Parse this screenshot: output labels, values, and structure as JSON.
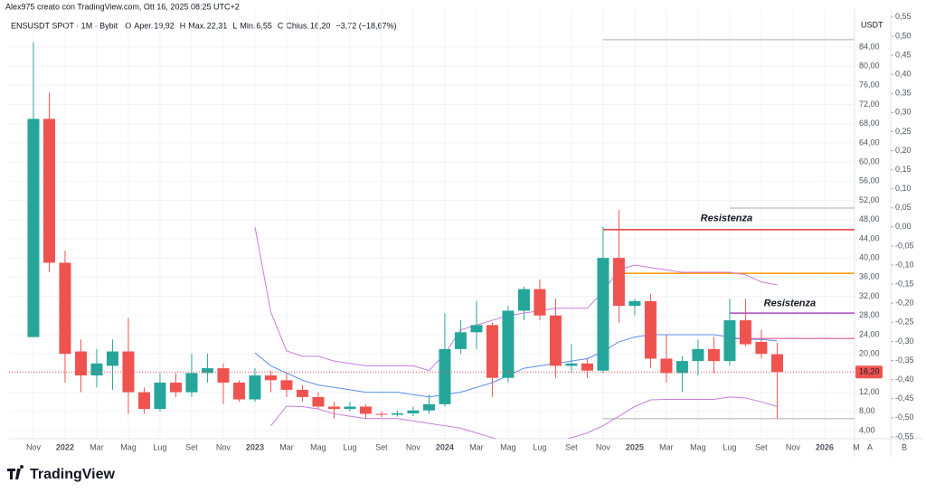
{
  "chart_data": {
    "type": "candlestick",
    "credit": "Alex975 creato con TradingView.com, Ott 16, 2025 08:25 UTC+2",
    "symbol": "ENSUSDT SPOT · 1M · Bybit",
    "ohlc_legend": [
      {
        "label": "O",
        "name": "Aper.",
        "value": "19,92"
      },
      {
        "label": "H",
        "name": "Max.",
        "value": "22,31"
      },
      {
        "label": "L",
        "name": "Min.",
        "value": "6,55"
      },
      {
        "label": "C",
        "name": "Chius.",
        "value": "16,20"
      }
    ],
    "change": "−3,72 (−18,67%)",
    "currency": "USDT",
    "brand": "TradingView",
    "corner_buttons": [
      "A",
      "B"
    ],
    "up_color": "#26a69a",
    "down_color": "#ef5350",
    "open": [
      23.5,
      69,
      39,
      20.5,
      15.5,
      17.5,
      20.5,
      12,
      8.5,
      14,
      12,
      16,
      17,
      14,
      10.5,
      15.5,
      14.5,
      12.5,
      11,
      9,
      8.5,
      9,
      7.5,
      7.3,
      7.6,
      8.2,
      9.5,
      21,
      24.5,
      26,
      15,
      29,
      33.5,
      28,
      17.5,
      18,
      16.5,
      40,
      30,
      31,
      19,
      16,
      18.5,
      21,
      18.5,
      27,
      22.5,
      19.92
    ],
    "high": [
      85,
      74.5,
      41.5,
      23,
      21,
      23,
      27.5,
      13,
      16,
      16,
      20,
      20,
      18,
      14.5,
      17,
      16.5,
      16,
      13.5,
      12,
      10,
      10,
      9.5,
      8,
      8.2,
      9,
      11.5,
      28.5,
      27,
      31,
      26.5,
      30,
      34,
      35.5,
      31.5,
      22,
      19,
      46.5,
      50,
      31.5,
      32.5,
      24,
      19.5,
      23,
      23.5,
      31.5,
      31.5,
      25,
      22.31
    ],
    "low": [
      23.5,
      37,
      14,
      12,
      13,
      12.5,
      7.5,
      7.5,
      8,
      11,
      11,
      14,
      9.5,
      10,
      10,
      12,
      11,
      10,
      8.5,
      6.5,
      8,
      6.5,
      6.8,
      6.9,
      7,
      7.5,
      9,
      20,
      21,
      11,
      14,
      27,
      27,
      15,
      16,
      15,
      16,
      26.5,
      28,
      17,
      14,
      12,
      15.5,
      16,
      17.5,
      21.5,
      19,
      6.55
    ],
    "close": [
      69,
      39,
      20,
      15.5,
      18,
      20.5,
      12,
      8.5,
      14,
      12,
      16,
      17,
      14,
      10.5,
      15.5,
      14.5,
      12.5,
      11,
      9,
      8.5,
      9,
      7.5,
      7.3,
      7.6,
      8.2,
      9.5,
      21,
      24.5,
      26,
      15,
      29,
      33.5,
      28,
      17.5,
      18,
      16.5,
      40,
      30,
      31,
      19,
      16,
      18.5,
      21,
      18.5,
      27,
      22,
      20,
      16.2
    ],
    "last_price_label": "16,20",
    "series": [
      {
        "color": "#5b8def",
        "values": [
          null,
          null,
          null,
          null,
          null,
          null,
          null,
          null,
          null,
          null,
          null,
          null,
          null,
          null,
          20.2,
          17.5,
          16,
          14.5,
          13.5,
          13,
          12.5,
          12,
          12,
          12,
          11.5,
          11,
          11.5,
          12,
          13,
          14,
          15.5,
          17,
          17.5,
          18,
          18.5,
          19,
          20.5,
          22.5,
          23.5,
          24,
          24,
          24,
          24,
          24,
          23.5,
          23,
          23,
          22.7
        ]
      },
      {
        "color": "#c77ddb",
        "values": [
          null,
          null,
          null,
          null,
          null,
          null,
          null,
          null,
          null,
          null,
          null,
          null,
          null,
          null,
          46.5,
          28.7,
          20.6,
          19.5,
          19.5,
          18.5,
          18,
          17.5,
          17.5,
          17.5,
          17.5,
          16.5,
          20,
          25,
          26,
          27,
          28,
          28.5,
          29,
          29.5,
          29.5,
          29.5,
          33,
          37.6,
          38.5,
          38,
          37.5,
          37,
          37,
          37,
          37,
          36.5,
          35,
          34.4
        ]
      },
      {
        "color": "#c77ddb",
        "values": [
          null,
          null,
          null,
          null,
          null,
          null,
          null,
          null,
          null,
          null,
          null,
          null,
          null,
          null,
          null,
          5,
          9.1,
          9,
          8.5,
          7.5,
          7,
          6.5,
          6.5,
          6.5,
          6,
          5.5,
          5,
          4.5,
          3.5,
          2.5,
          1.5,
          1.5,
          1,
          1.5,
          2.5,
          3.5,
          5,
          7,
          9,
          10.4,
          10.5,
          10.5,
          10.5,
          10.5,
          11,
          10.8,
          10,
          9
        ]
      }
    ],
    "levels": [
      {
        "value": 85.5,
        "from": 36,
        "color": "#c8c8c8"
      },
      {
        "value": 50.4,
        "from": 44,
        "color": "#c8c8c8"
      },
      {
        "value": 45.9,
        "from": 36,
        "color": "#e53935"
      },
      {
        "value": 36.8,
        "from": 37,
        "color": "#ff9800"
      },
      {
        "value": 28.5,
        "from": 44,
        "color": "#ab47bc"
      },
      {
        "value": 23.2,
        "from": 44,
        "color": "#e57fb0"
      },
      {
        "value": 6.5,
        "from": 36,
        "color": "#c8c8c8"
      }
    ],
    "annotations": [
      {
        "text": "Resistenza",
        "x": 43.8,
        "y": 48.2,
        "color": "#ef5350"
      },
      {
        "text": "Resistenza",
        "x": 47.8,
        "y": 30.5,
        "color": "#ab47bc"
      }
    ],
    "xlim": [
      -1.54,
      51.89
    ],
    "xticks": [
      {
        "value": 0,
        "label": "Nov"
      },
      {
        "value": 2,
        "label": "2022"
      },
      {
        "value": 4,
        "label": "Mar"
      },
      {
        "value": 6,
        "label": "Mag"
      },
      {
        "value": 8,
        "label": "Lug"
      },
      {
        "value": 10,
        "label": "Set"
      },
      {
        "value": 12,
        "label": "Nov"
      },
      {
        "value": 14,
        "label": "2023"
      },
      {
        "value": 16,
        "label": "Mar"
      },
      {
        "value": 18,
        "label": "Mag"
      },
      {
        "value": 20,
        "label": "Lug"
      },
      {
        "value": 22,
        "label": "Set"
      },
      {
        "value": 24,
        "label": "Nov"
      },
      {
        "value": 26,
        "label": "2024"
      },
      {
        "value": 28,
        "label": "Mar"
      },
      {
        "value": 30,
        "label": "Mag"
      },
      {
        "value": 32,
        "label": "Lug"
      },
      {
        "value": 34,
        "label": "Set"
      },
      {
        "value": 36,
        "label": "Nov"
      },
      {
        "value": 38,
        "label": "2025"
      },
      {
        "value": 40,
        "label": "Mar"
      },
      {
        "value": 42,
        "label": "Mag"
      },
      {
        "value": 44,
        "label": "Lug"
      },
      {
        "value": 46,
        "label": "Set"
      },
      {
        "value": 48,
        "label": "Nov"
      },
      {
        "value": 50,
        "label": "2026"
      },
      {
        "value": 52,
        "label": "M"
      }
    ],
    "ylim": [
      2.3,
      91.9
    ],
    "yticks": [
      {
        "value": 4,
        "label": "4,00"
      },
      {
        "value": 8,
        "label": "8,00"
      },
      {
        "value": 12,
        "label": "12,00"
      },
      {
        "value": 16,
        "label": "16,00"
      },
      {
        "value": 20,
        "label": "20,00"
      },
      {
        "value": 24,
        "label": "24,00"
      },
      {
        "value": 28,
        "label": "28,00"
      },
      {
        "value": 32,
        "label": "32,00"
      },
      {
        "value": 36,
        "label": "36,00"
      },
      {
        "value": 40,
        "label": "40,00"
      },
      {
        "value": 44,
        "label": "44,00"
      },
      {
        "value": 48,
        "label": "48,00"
      },
      {
        "value": 52,
        "label": "52,00"
      },
      {
        "value": 56,
        "label": "56,00"
      },
      {
        "value": 60,
        "label": "60,00"
      },
      {
        "value": 64,
        "label": "64,00"
      },
      {
        "value": 68,
        "label": "68,00"
      },
      {
        "value": 72,
        "label": "72,00"
      },
      {
        "value": 76,
        "label": "76,00"
      },
      {
        "value": 80,
        "label": "80,00"
      },
      {
        "value": 84,
        "label": "84,00"
      }
    ],
    "y2lim": [
      -0.555,
      0.571
    ],
    "y2ticks": [
      {
        "value": 0.55,
        "label": "0,55"
      },
      {
        "value": 0.5,
        "label": "0,50"
      },
      {
        "value": 0.45,
        "label": "0,45"
      },
      {
        "value": 0.4,
        "label": "0,40"
      },
      {
        "value": 0.35,
        "label": "0,35"
      },
      {
        "value": 0.3,
        "label": "0,30"
      },
      {
        "value": 0.25,
        "label": "0,25"
      },
      {
        "value": 0.2,
        "label": "0,20"
      },
      {
        "value": 0.15,
        "label": "0,15"
      },
      {
        "value": 0.1,
        "label": "0,10"
      },
      {
        "value": 0.05,
        "label": "0,05"
      },
      {
        "value": 0,
        "label": "0,00"
      },
      {
        "value": -0.05,
        "label": "-0,05"
      },
      {
        "value": -0.1,
        "label": "-0,10"
      },
      {
        "value": -0.15,
        "label": "-0,15"
      },
      {
        "value": -0.2,
        "label": "-0,20"
      },
      {
        "value": -0.25,
        "label": "-0,25"
      },
      {
        "value": -0.3,
        "label": "-0,30"
      },
      {
        "value": -0.35,
        "label": "-0,35"
      },
      {
        "value": -0.4,
        "label": "-0,40"
      },
      {
        "value": -0.45,
        "label": "-0,45"
      },
      {
        "value": -0.5,
        "label": "-0,50"
      },
      {
        "value": -0.55,
        "label": "-0,55"
      }
    ],
    "grid": true
  }
}
